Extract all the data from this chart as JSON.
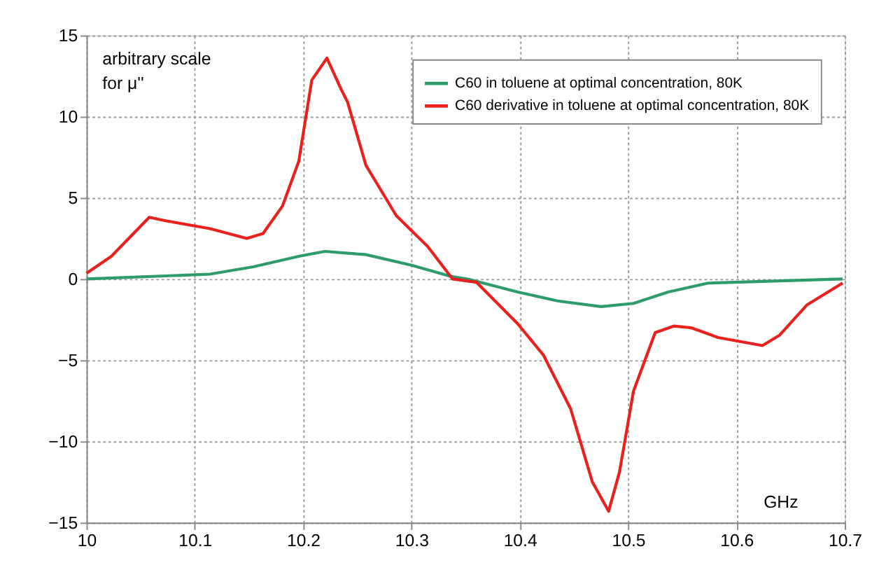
{
  "chart_data": {
    "type": "line",
    "xlabel": "GHz",
    "ylabel": "arbitrary scale for μ''",
    "xlim": [
      10,
      10.7
    ],
    "xticks": [
      10,
      10.1,
      10.2,
      10.3,
      10.4,
      10.5,
      10.6,
      10.7
    ],
    "ylim": [
      -15,
      15
    ],
    "yticks": [
      -15,
      -10,
      -5,
      0,
      5,
      10,
      15
    ],
    "grid": true,
    "legend": "top right",
    "marker": "none",
    "line_style": "solid",
    "series": [
      {
        "name": "C60 in toluene at optimal concentration, 80K",
        "color": "#2e9b6b",
        "x": [
          10.0,
          10.114,
          10.154,
          10.196,
          10.22,
          10.258,
          10.3,
          10.336,
          10.352,
          10.398,
          10.435,
          10.475,
          10.505,
          10.537,
          10.574,
          10.698
        ],
        "values": [
          0.0,
          0.3,
          0.75,
          1.4,
          1.7,
          1.5,
          0.85,
          0.17,
          0.0,
          -0.8,
          -1.35,
          -1.7,
          -1.5,
          -0.8,
          -0.25,
          0.0
        ]
      },
      {
        "name": "C60 derivative in toluene at optimal concentration, 80K",
        "color": "#e8211d",
        "x": [
          10.0,
          10.023,
          10.058,
          10.072,
          10.114,
          10.148,
          10.163,
          10.181,
          10.196,
          10.208,
          10.222,
          10.235,
          10.241,
          10.258,
          10.286,
          10.315,
          10.338,
          10.36,
          10.398,
          10.422,
          10.447,
          10.467,
          10.482,
          10.492,
          10.505,
          10.525,
          10.542,
          10.558,
          10.583,
          10.624,
          10.64,
          10.665,
          10.698
        ],
        "values": [
          0.35,
          1.4,
          3.8,
          3.6,
          3.1,
          2.5,
          2.8,
          4.5,
          7.25,
          12.25,
          13.6,
          11.7,
          10.9,
          7.0,
          3.9,
          2.0,
          0.0,
          -0.2,
          -2.75,
          -4.7,
          -8.0,
          -12.5,
          -14.3,
          -11.9,
          -6.9,
          -3.3,
          -2.9,
          -3.0,
          -3.6,
          -4.1,
          -3.45,
          -1.6,
          -0.25
        ]
      }
    ]
  }
}
